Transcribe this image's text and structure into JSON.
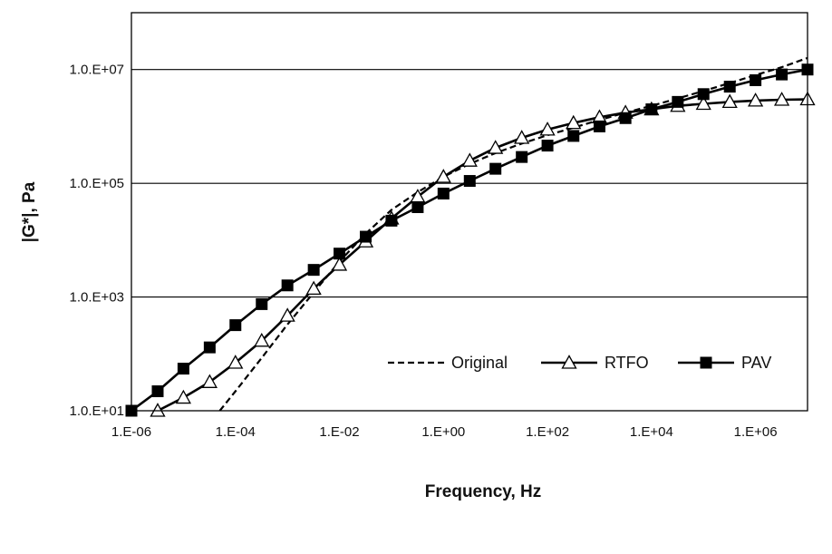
{
  "chart_data": {
    "type": "line",
    "title": "",
    "xlabel": "Frequency, Hz",
    "ylabel": "|G*|, Pa",
    "x_scale": "log",
    "y_scale": "log",
    "xlim": [
      1e-06,
      10000000.0
    ],
    "ylim": [
      10,
      100000000.0
    ],
    "x_ticks": [
      1e-06,
      0.0001,
      0.01,
      1,
      100,
      10000.0,
      1000000.0
    ],
    "x_tick_labels": [
      "1.E-06",
      "1.E-04",
      "1.E-02",
      "1.E+00",
      "1.E+02",
      "1.E+04",
      "1.E+06"
    ],
    "y_ticks": [
      10,
      1000,
      100000,
      10000000
    ],
    "y_tick_labels": [
      "1.0.E+01",
      "1.0.E+03",
      "1.0.E+05",
      "1.0.E+07"
    ],
    "grid": "horizontal-major",
    "legend_position": "bottom-right",
    "series": [
      {
        "name": "Original",
        "style": "dashed",
        "marker": "none",
        "color": "#000000",
        "x": [
          5e-05,
          0.0001,
          0.00032,
          0.001,
          0.0032,
          0.01,
          0.032,
          0.1,
          0.32,
          1.0,
          3.2,
          10,
          32,
          100,
          316,
          1000,
          3162,
          10000.0,
          32000.0,
          100000.0,
          320000.0,
          1000000.0,
          3200000.0,
          10000000.0
        ],
        "y": [
          10,
          22,
          85,
          330,
          1200,
          4200,
          13000,
          34000,
          70000,
          130000,
          220000,
          340000,
          500000,
          700000,
          950000,
          1300000,
          1750000,
          2300000,
          3100000,
          4200000,
          5800000,
          8000000,
          11000000,
          16000000
        ]
      },
      {
        "name": "RTFO",
        "style": "solid",
        "marker": "open-triangle",
        "color": "#000000",
        "x": [
          3.2e-06,
          1e-05,
          3.2e-05,
          0.0001,
          0.00032,
          0.001,
          0.0032,
          0.01,
          0.032,
          0.1,
          0.32,
          1.0,
          3.2,
          10,
          32,
          100,
          316,
          1000,
          3162,
          10000.0,
          32000.0,
          100000.0,
          320000.0,
          1000000.0,
          3200000.0,
          10000000.0
        ],
        "y": [
          10,
          17,
          32,
          70,
          170,
          470,
          1400,
          3700,
          9500,
          24000,
          58000,
          130000,
          250000,
          420000,
          630000,
          880000,
          1150000,
          1450000,
          1750000,
          2000000,
          2300000,
          2500000,
          2700000,
          2850000,
          2950000,
          3000000
        ]
      },
      {
        "name": "PAV",
        "style": "solid",
        "marker": "filled-square",
        "color": "#000000",
        "x": [
          1e-06,
          3.2e-06,
          1e-05,
          3.2e-05,
          0.0001,
          0.00032,
          0.001,
          0.0032,
          0.01,
          0.032,
          0.1,
          0.32,
          1.0,
          3.2,
          10,
          32,
          100,
          316,
          1000,
          3162,
          10000.0,
          32000.0,
          100000.0,
          320000.0,
          1000000.0,
          3200000.0,
          10000000.0
        ],
        "y": [
          10,
          22,
          55,
          130,
          320,
          750,
          1600,
          3000,
          5800,
          11500,
          22000,
          38000,
          66000,
          110000,
          180000,
          290000,
          460000,
          680000,
          1000000,
          1400000,
          2000000,
          2700000,
          3700000,
          5000000,
          6500000,
          8200000,
          10000000
        ]
      }
    ]
  }
}
